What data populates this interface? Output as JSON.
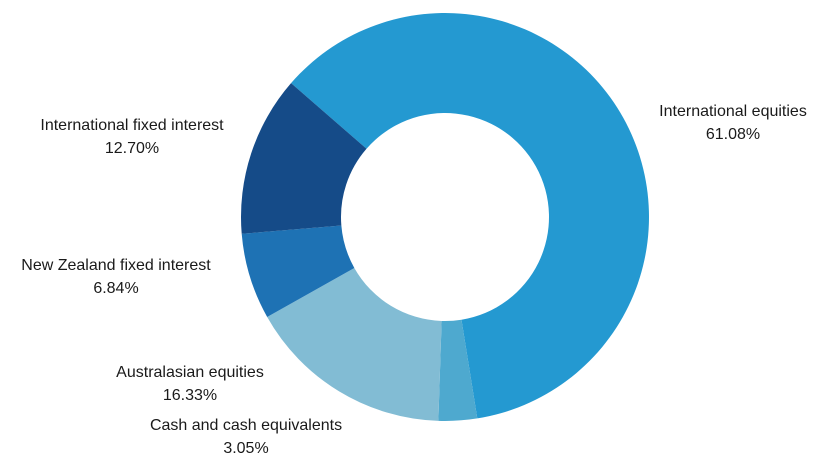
{
  "chart_data": {
    "type": "pie",
    "variant": "donut",
    "title": "",
    "legend": "none",
    "slices": [
      {
        "label": "International equities",
        "value": 61.08,
        "value_text": "61.08%",
        "color": "#2499d1"
      },
      {
        "label": "Cash and cash equivalents",
        "value": 3.05,
        "value_text": "3.05%",
        "color": "#4ea9cf"
      },
      {
        "label": "Australasian equities",
        "value": 16.33,
        "value_text": "16.33%",
        "color": "#82bcd4"
      },
      {
        "label": "New Zealand fixed interest",
        "value": 6.84,
        "value_text": "6.84%",
        "color": "#1e72b4"
      },
      {
        "label": "International fixed interest",
        "value": 12.7,
        "value_text": "12.70%",
        "color": "#154b88"
      }
    ]
  }
}
